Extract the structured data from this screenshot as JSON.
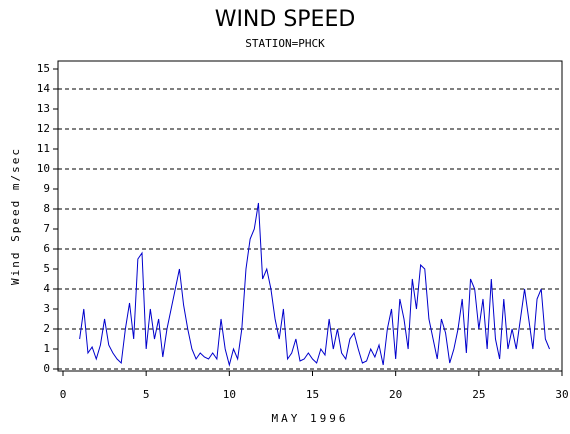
{
  "chart_data": {
    "type": "line",
    "title": "WIND SPEED",
    "subtitle": "STATION=PHCK",
    "y_label": "Wind Speed m/sec",
    "x_label": "MAY 1996",
    "xlim": [
      0,
      30
    ],
    "xticks": [
      0,
      5,
      10,
      15,
      20,
      25,
      30
    ],
    "ylim": [
      -0.1,
      15.4
    ],
    "yticks": [
      0,
      1,
      2,
      3,
      4,
      5,
      6,
      7,
      8,
      9,
      10,
      11,
      12,
      13,
      14,
      15
    ],
    "grid_lines": [
      0,
      2,
      4,
      6,
      8,
      10,
      12,
      14
    ],
    "series": [
      {
        "name": "Wind Speed",
        "color": "#0000cc",
        "x": [
          1,
          1.25,
          1.5,
          1.75,
          2,
          2.25,
          2.5,
          2.75,
          3,
          3.25,
          3.5,
          3.75,
          4,
          4.25,
          4.5,
          4.75,
          5,
          5.25,
          5.5,
          5.75,
          6,
          6.25,
          6.5,
          6.75,
          7,
          7.25,
          7.5,
          7.75,
          8,
          8.25,
          8.5,
          8.75,
          9,
          9.25,
          9.5,
          9.75,
          10,
          10.25,
          10.5,
          10.75,
          11,
          11.25,
          11.5,
          11.75,
          12,
          12.25,
          12.5,
          12.75,
          13,
          13.25,
          13.5,
          13.75,
          14,
          14.25,
          14.5,
          14.75,
          15,
          15.25,
          15.5,
          15.75,
          16,
          16.25,
          16.5,
          16.75,
          17,
          17.25,
          17.5,
          17.75,
          18,
          18.25,
          18.5,
          18.75,
          19,
          19.25,
          19.5,
          19.75,
          20,
          20.25,
          20.5,
          20.75,
          21,
          21.25,
          21.5,
          21.75,
          22,
          22.25,
          22.5,
          22.75,
          23,
          23.25,
          23.5,
          23.75,
          24,
          24.25,
          24.5,
          24.75,
          25,
          25.25,
          25.5,
          25.75,
          26,
          26.25,
          26.5,
          26.75,
          27,
          27.25,
          27.5,
          27.75,
          28,
          28.25,
          28.5,
          28.75,
          29,
          29.25
        ],
        "values": [
          1.5,
          3.0,
          0.8,
          1.1,
          0.5,
          1.2,
          2.5,
          1.2,
          0.8,
          0.5,
          0.3,
          2.0,
          3.3,
          1.5,
          5.5,
          5.8,
          1.0,
          3.0,
          1.5,
          2.5,
          0.6,
          2.0,
          3.0,
          4.0,
          5.0,
          3.2,
          2.0,
          1.0,
          0.5,
          0.8,
          0.6,
          0.5,
          0.8,
          0.5,
          2.5,
          1.0,
          0.2,
          1.0,
          0.5,
          2.0,
          5.0,
          6.5,
          7.0,
          8.3,
          4.5,
          5.0,
          4.0,
          2.5,
          1.5,
          3.0,
          0.5,
          0.8,
          1.5,
          0.4,
          0.5,
          0.8,
          0.5,
          0.3,
          1.0,
          0.7,
          2.5,
          1.0,
          2.0,
          0.8,
          0.5,
          1.5,
          1.8,
          1.0,
          0.3,
          0.4,
          1.0,
          0.6,
          1.2,
          0.2,
          2.0,
          3.0,
          0.5,
          3.5,
          2.5,
          1.0,
          4.5,
          3.0,
          5.2,
          5.0,
          2.5,
          1.5,
          0.5,
          2.5,
          1.8,
          0.3,
          1.0,
          2.0,
          3.5,
          0.8,
          4.5,
          4.0,
          2.0,
          3.5,
          1.0,
          4.5,
          1.5,
          0.5,
          3.5,
          1.0,
          2.0,
          1.0,
          2.5,
          4.0,
          2.5,
          1.0,
          3.5,
          4.0,
          1.5,
          1.0
        ]
      }
    ]
  }
}
